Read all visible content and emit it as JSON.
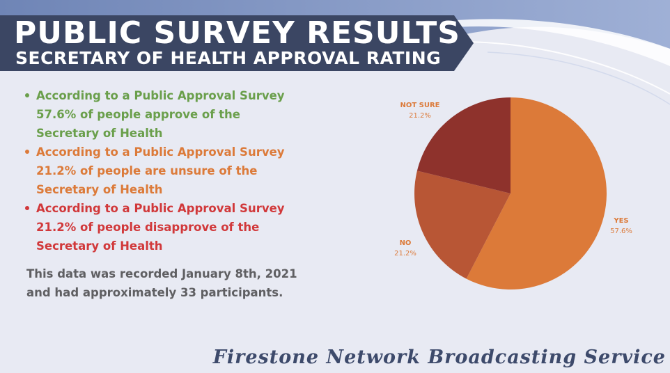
{
  "banner": {
    "title": "PUBLIC SURVEY RESULTS",
    "subtitle": "SECRETARY OF HEALTH APPROVAL RATING",
    "color": "#3b4663"
  },
  "bullets": [
    {
      "color": "#6a9f4b",
      "lines": [
        "According to a Public Approval Survey",
        "57.6% of people approve of the",
        "Secretary of Health"
      ]
    },
    {
      "color": "#dc7a39",
      "lines": [
        "According to a Public Approval Survey",
        "21.2% of people are unsure of the",
        "Secretary of Health"
      ]
    },
    {
      "color": "#d1383a",
      "lines": [
        "According to a Public Approval Survey",
        "21.2% of people disapprove of the",
        "Secretary of Health"
      ]
    }
  ],
  "note": {
    "line1": "This data was recorded January 8th, 2021",
    "line2": "and had approximately 33 participants."
  },
  "footer": "Firestone Network Broadcasting Service",
  "chart_data": {
    "type": "pie",
    "slices": [
      {
        "label": "YES",
        "value": 57.6,
        "display": "57.6%",
        "color": "#dc7a39"
      },
      {
        "label": "NO",
        "value": 21.2,
        "display": "21.2%",
        "color": "#b85635"
      },
      {
        "label": "NOT SURE",
        "value": 21.2,
        "display": "21.2%",
        "color": "#8e322c"
      }
    ],
    "start": "12 o'clock, clockwise",
    "legend": "none (outside data labels)"
  }
}
